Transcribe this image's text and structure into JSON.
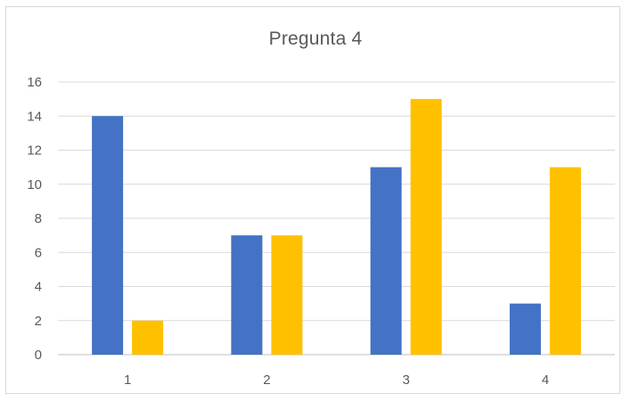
{
  "chart_data": {
    "type": "bar",
    "title": "Pregunta 4",
    "xlabel": "",
    "ylabel": "",
    "categories": [
      "1",
      "2",
      "3",
      "4"
    ],
    "series": [
      {
        "values": [
          14,
          7,
          11,
          3
        ],
        "color": "#4472c4"
      },
      {
        "values": [
          2,
          7,
          15,
          11
        ],
        "color": "#ffc000"
      }
    ],
    "ylim": [
      0,
      16
    ],
    "yticks": [
      "0",
      "2",
      "4",
      "6",
      "8",
      "10",
      "12",
      "14",
      "16"
    ],
    "grid": true,
    "legend": "none"
  }
}
